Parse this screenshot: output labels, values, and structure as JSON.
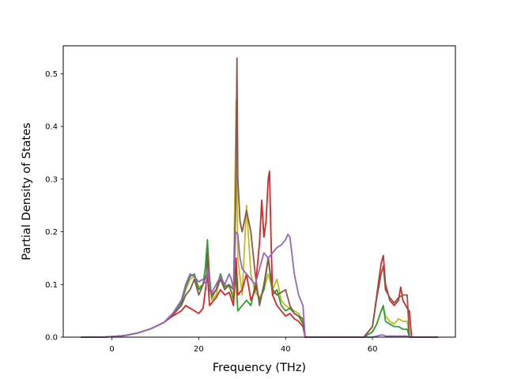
{
  "chart_data": {
    "type": "line",
    "title": "",
    "xlabel": "Frequency (THz)",
    "ylabel": "Partial Density of States",
    "xlim": [
      -11.2,
      79.1
    ],
    "ylim": [
      0.0,
      0.553
    ],
    "xticks": [
      0,
      20,
      40,
      60
    ],
    "yticks": [
      0.0,
      0.1,
      0.2,
      0.3,
      0.4,
      0.5
    ],
    "ytick_labels": [
      "0.0",
      "0.1",
      "0.2",
      "0.3",
      "0.4",
      "0.5"
    ],
    "grid": false,
    "series": [
      {
        "color": "#bcbd22",
        "x": [
          -7,
          -2,
          0,
          3,
          6,
          9,
          12,
          14,
          16,
          17,
          18,
          19,
          20,
          21,
          22,
          23,
          24,
          25,
          26,
          27,
          28,
          28.6,
          29,
          30,
          31,
          32,
          33,
          34,
          35,
          36,
          37,
          38,
          39,
          40,
          41,
          42,
          43,
          44,
          44.5,
          45,
          50,
          58,
          60,
          61,
          62,
          62.5,
          63,
          64,
          65,
          66,
          67,
          68,
          68.5,
          69,
          75
        ],
        "y": [
          0,
          0,
          0.001,
          0.003,
          0.008,
          0.016,
          0.028,
          0.045,
          0.065,
          0.09,
          0.11,
          0.115,
          0.095,
          0.1,
          0.16,
          0.07,
          0.08,
          0.115,
          0.1,
          0.095,
          0.08,
          0.45,
          0.15,
          0.08,
          0.25,
          0.12,
          0.085,
          0.075,
          0.09,
          0.12,
          0.09,
          0.11,
          0.07,
          0.06,
          0.055,
          0.05,
          0.045,
          0.03,
          0.0,
          0,
          0,
          0,
          0.01,
          0.025,
          0.05,
          0.055,
          0.04,
          0.03,
          0.025,
          0.035,
          0.03,
          0.03,
          0.0,
          0,
          0
        ]
      },
      {
        "color": "#2ca02c",
        "x": [
          -7,
          -2,
          0,
          3,
          6,
          9,
          12,
          14,
          16,
          17,
          18,
          19,
          20,
          21,
          21.5,
          22,
          22.5,
          23,
          24,
          25,
          26,
          27,
          28,
          28.5,
          29,
          30,
          31,
          32,
          33,
          34,
          35,
          36,
          37,
          38,
          39,
          40,
          41,
          42,
          43,
          44,
          44.5,
          45,
          50,
          58,
          60,
          61,
          62,
          62.5,
          63,
          64,
          65,
          66,
          67,
          68,
          68.5,
          69,
          75
        ],
        "y": [
          0,
          0,
          0.001,
          0.003,
          0.008,
          0.016,
          0.028,
          0.045,
          0.065,
          0.095,
          0.115,
          0.12,
          0.09,
          0.1,
          0.13,
          0.185,
          0.11,
          0.075,
          0.09,
          0.12,
          0.095,
          0.1,
          0.07,
          0.12,
          0.05,
          0.06,
          0.07,
          0.06,
          0.1,
          0.07,
          0.09,
          0.15,
          0.08,
          0.09,
          0.06,
          0.05,
          0.055,
          0.045,
          0.04,
          0.025,
          0.0,
          0,
          0,
          0,
          0.01,
          0.025,
          0.05,
          0.06,
          0.03,
          0.025,
          0.02,
          0.02,
          0.015,
          0.015,
          0.0,
          0,
          0
        ]
      },
      {
        "color": "#d62728",
        "x": [
          -7,
          -2,
          0,
          3,
          6,
          9,
          12,
          14,
          16,
          17,
          18,
          19,
          20,
          21,
          21.7,
          22,
          22.5,
          23,
          24,
          25,
          26,
          27,
          28,
          28.6,
          29,
          30,
          31,
          32,
          33,
          34,
          34.5,
          35,
          35.5,
          36,
          36.3,
          36.6,
          37,
          38,
          39,
          40,
          41,
          42,
          43,
          44,
          44.5,
          45,
          50,
          58,
          60,
          61,
          62,
          62.5,
          63,
          64,
          65,
          66,
          66.5,
          67,
          68,
          68.5,
          69,
          75
        ],
        "y": [
          0,
          0,
          0.001,
          0.003,
          0.008,
          0.016,
          0.028,
          0.04,
          0.05,
          0.06,
          0.055,
          0.05,
          0.045,
          0.055,
          0.1,
          0.12,
          0.06,
          0.065,
          0.075,
          0.09,
          0.08,
          0.085,
          0.06,
          0.15,
          0.08,
          0.09,
          0.12,
          0.07,
          0.09,
          0.18,
          0.26,
          0.19,
          0.22,
          0.3,
          0.315,
          0.2,
          0.08,
          0.06,
          0.05,
          0.04,
          0.045,
          0.035,
          0.03,
          0.02,
          0.0,
          0,
          0,
          0,
          0.02,
          0.08,
          0.14,
          0.155,
          0.1,
          0.07,
          0.06,
          0.07,
          0.095,
          0.07,
          0.055,
          0.05,
          0.0,
          0
        ]
      },
      {
        "color": "#8c564b",
        "x": [
          -7,
          -2,
          0,
          3,
          6,
          9,
          12,
          14,
          16,
          17,
          18,
          19,
          20,
          21,
          21.8,
          22,
          22.5,
          23,
          24,
          25,
          26,
          27,
          28,
          28.5,
          28.8,
          29,
          29.5,
          30,
          31,
          32,
          33,
          34,
          35,
          36,
          37,
          38,
          39,
          40,
          41,
          42,
          43,
          44,
          44.5,
          45,
          50,
          58,
          60,
          61,
          62,
          62.5,
          63,
          64,
          65,
          66,
          67,
          68,
          68.5,
          69,
          75
        ],
        "y": [
          0,
          0,
          0.001,
          0.003,
          0.008,
          0.016,
          0.028,
          0.042,
          0.06,
          0.08,
          0.09,
          0.11,
          0.08,
          0.1,
          0.12,
          0.16,
          0.09,
          0.08,
          0.09,
          0.11,
          0.09,
          0.1,
          0.09,
          0.25,
          0.53,
          0.3,
          0.22,
          0.2,
          0.24,
          0.2,
          0.12,
          0.06,
          0.1,
          0.15,
          0.09,
          0.08,
          0.085,
          0.09,
          0.06,
          0.045,
          0.04,
          0.035,
          0.0,
          0,
          0,
          0,
          0.02,
          0.075,
          0.12,
          0.135,
          0.09,
          0.075,
          0.065,
          0.075,
          0.08,
          0.08,
          0.0,
          0,
          0
        ]
      },
      {
        "color": "#9467bd",
        "x": [
          -7,
          -2,
          0,
          3,
          6,
          9,
          12,
          14,
          16,
          17,
          18,
          19,
          20,
          21,
          21.7,
          22,
          22.5,
          23,
          24,
          25,
          26,
          27,
          27.5,
          28,
          28.5,
          29,
          29.5,
          30,
          31,
          32,
          33,
          34,
          35,
          36,
          37,
          38,
          39,
          40,
          40.5,
          41,
          42,
          43,
          44,
          44.5,
          45,
          50,
          58,
          60,
          61,
          62,
          62.5,
          63,
          64,
          65,
          66,
          67,
          68,
          68.5,
          69,
          75
        ],
        "y": [
          0,
          0,
          0.001,
          0.003,
          0.008,
          0.016,
          0.028,
          0.045,
          0.07,
          0.1,
          0.12,
          0.115,
          0.105,
          0.11,
          0.1,
          0.13,
          0.095,
          0.085,
          0.1,
          0.115,
          0.1,
          0.12,
          0.11,
          0.09,
          0.2,
          0.195,
          0.15,
          0.13,
          0.12,
          0.11,
          0.1,
          0.13,
          0.16,
          0.15,
          0.16,
          0.17,
          0.175,
          0.185,
          0.195,
          0.19,
          0.12,
          0.08,
          0.06,
          0.0,
          0,
          0,
          0,
          0.0,
          0.002,
          0.004,
          0.004,
          0.002,
          0.002,
          0.002,
          0.002,
          0.002,
          0.002,
          0.0,
          0,
          0
        ]
      }
    ]
  }
}
